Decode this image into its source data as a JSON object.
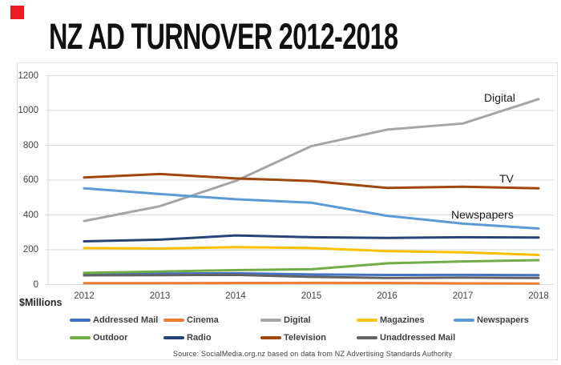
{
  "page": {
    "title": "NZ AD TURNOVER 2012-2018",
    "brand_square_color": "#ED1C24",
    "y_axis_unit": "$Millions",
    "source": "Source: SocialMedia.org.nz based on data from NZ Advertising Standards Authority"
  },
  "chart_data": {
    "type": "line",
    "title": "NZ AD TURNOVER 2012-2018",
    "ylabel": "$Millions",
    "xlabel": "",
    "x_labels": [
      "2012",
      "2013",
      "2014",
      "2015",
      "2016",
      "2017",
      "2018"
    ],
    "ylim": [
      0,
      1200
    ],
    "y_ticks": [
      1200,
      1000,
      800,
      600,
      400,
      200,
      0
    ],
    "grid": true,
    "legend_position": "bottom",
    "grid_color": "#d9d9d9",
    "series": [
      {
        "name": "Addressed Mail",
        "color": "#4472C4",
        "values": [
          60,
          63,
          65,
          58,
          55,
          56,
          54
        ]
      },
      {
        "name": "Cinema",
        "color": "#ED7D31",
        "values": [
          8,
          8,
          9,
          10,
          9,
          7,
          6
        ]
      },
      {
        "name": "Digital",
        "color": "#A5A5A5",
        "values": [
          365,
          450,
          595,
          795,
          890,
          925,
          1065
        ]
      },
      {
        "name": "Magazines",
        "color": "#FFC000",
        "values": [
          210,
          207,
          215,
          210,
          192,
          185,
          170
        ]
      },
      {
        "name": "Newspapers",
        "color": "#5B9BD5",
        "values": [
          553,
          520,
          490,
          470,
          395,
          350,
          322
        ]
      },
      {
        "name": "Outdoor",
        "color": "#70AD47",
        "values": [
          67,
          75,
          83,
          88,
          122,
          133,
          140
        ]
      },
      {
        "name": "Radio",
        "color": "#264478",
        "values": [
          248,
          258,
          282,
          272,
          268,
          272,
          270
        ]
      },
      {
        "name": "Television",
        "color": "#9E480E",
        "values": [
          615,
          635,
          610,
          595,
          555,
          562,
          553
        ]
      },
      {
        "name": "Unaddressed Mail",
        "color": "#636363",
        "values": [
          53,
          54,
          56,
          44,
          38,
          40,
          38
        ]
      }
    ],
    "annotations": [
      {
        "text": "Digital",
        "x": 604,
        "y": 114
      },
      {
        "text": "TV",
        "x": 623,
        "y": 215
      },
      {
        "text": "Newspapers",
        "x": 563,
        "y": 260
      }
    ]
  }
}
